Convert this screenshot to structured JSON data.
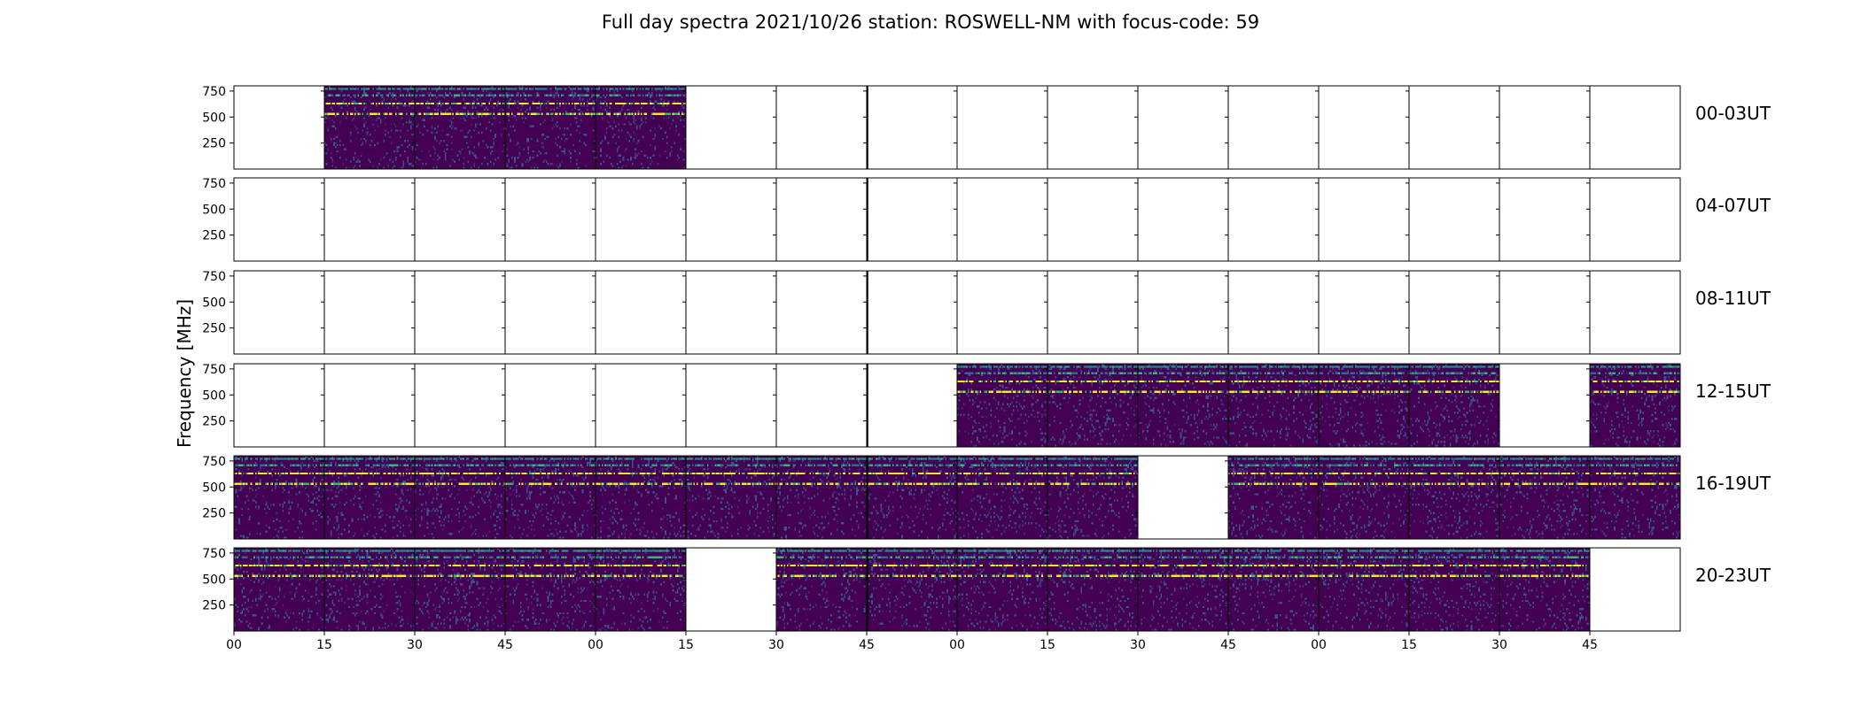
{
  "chart_data": {
    "type": "heatmap",
    "title": "Full day spectra 2021/10/26 station: ROSWELL-NM with focus-code: 59",
    "ylabel": "Frequency [MHz]",
    "yticks": [
      "250",
      "500",
      "750"
    ],
    "ytick_values": [
      250,
      500,
      750
    ],
    "ylim": [
      0,
      800
    ],
    "xticks": [
      "00",
      "15",
      "30",
      "45",
      "00",
      "15",
      "30",
      "45",
      "00",
      "15",
      "30",
      "45",
      "00",
      "15",
      "30",
      "45"
    ],
    "colormap": "viridis",
    "colors": {
      "low": "#440154",
      "mid": "#21918c",
      "high": "#fde725"
    },
    "rows": [
      {
        "label": "00-03UT",
        "has_data": [
          0,
          1,
          1,
          1,
          1,
          0,
          0,
          0,
          0,
          0,
          0,
          0,
          0,
          0,
          0,
          0
        ]
      },
      {
        "label": "04-07UT",
        "has_data": [
          0,
          0,
          0,
          0,
          0,
          0,
          0,
          0,
          0,
          0,
          0,
          0,
          0,
          0,
          0,
          0
        ]
      },
      {
        "label": "08-11UT",
        "has_data": [
          0,
          0,
          0,
          0,
          0,
          0,
          0,
          0,
          0,
          0,
          0,
          0,
          0,
          0,
          0,
          0
        ]
      },
      {
        "label": "12-15UT",
        "has_data": [
          0,
          0,
          0,
          0,
          0,
          0,
          0,
          0,
          1,
          1,
          1,
          1,
          1,
          1,
          0,
          1
        ]
      },
      {
        "label": "16-19UT",
        "has_data": [
          1,
          1,
          1,
          1,
          1,
          1,
          1,
          1,
          1,
          1,
          0,
          1,
          1,
          1,
          1,
          1
        ]
      },
      {
        "label": "20-23UT",
        "has_data": [
          1,
          1,
          1,
          1,
          1,
          0,
          1,
          1,
          1,
          1,
          1,
          1,
          1,
          1,
          1,
          0
        ]
      }
    ]
  }
}
